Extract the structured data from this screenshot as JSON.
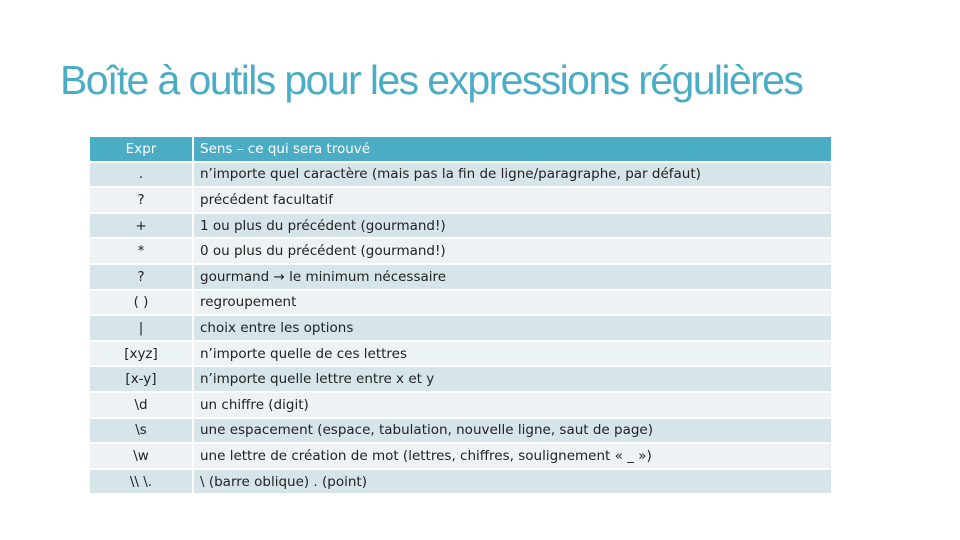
{
  "title": "Boîte à outils pour les expressions régulières",
  "table": {
    "headers": [
      "Expr",
      "Sens – ce qui sera trouvé"
    ],
    "rows": [
      {
        "expr": ".",
        "meaning": "n’importe quel caractère (mais pas la fin de ligne/paragraphe, par défaut)"
      },
      {
        "expr": "?",
        "meaning": "précédent facultatif"
      },
      {
        "expr": "+",
        "meaning": "1 ou plus du précédent (gourmand!)"
      },
      {
        "expr": "*",
        "meaning": "0 ou plus du précédent (gourmand!)"
      },
      {
        "expr": "?",
        "meaning": "gourmand → le minimum nécessaire"
      },
      {
        "expr": "( )",
        "meaning": "regroupement"
      },
      {
        "expr": "|",
        "meaning": "choix entre les options"
      },
      {
        "expr": "[xyz]",
        "meaning": "n’importe quelle de ces lettres"
      },
      {
        "expr": "[x-y]",
        "meaning": "n’importe quelle lettre entre x et y"
      },
      {
        "expr": "\\d",
        "meaning": "un chiffre (digit)"
      },
      {
        "expr": "\\s",
        "meaning": "une espacement (espace, tabulation, nouvelle ligne, saut de page)"
      },
      {
        "expr": "\\w",
        "meaning": "une lettre de création de mot (lettres, chiffres, soulignement « _ »)"
      },
      {
        "expr": "\\\\ \\.",
        "meaning": "\\ (barre oblique) . (point)"
      }
    ]
  }
}
